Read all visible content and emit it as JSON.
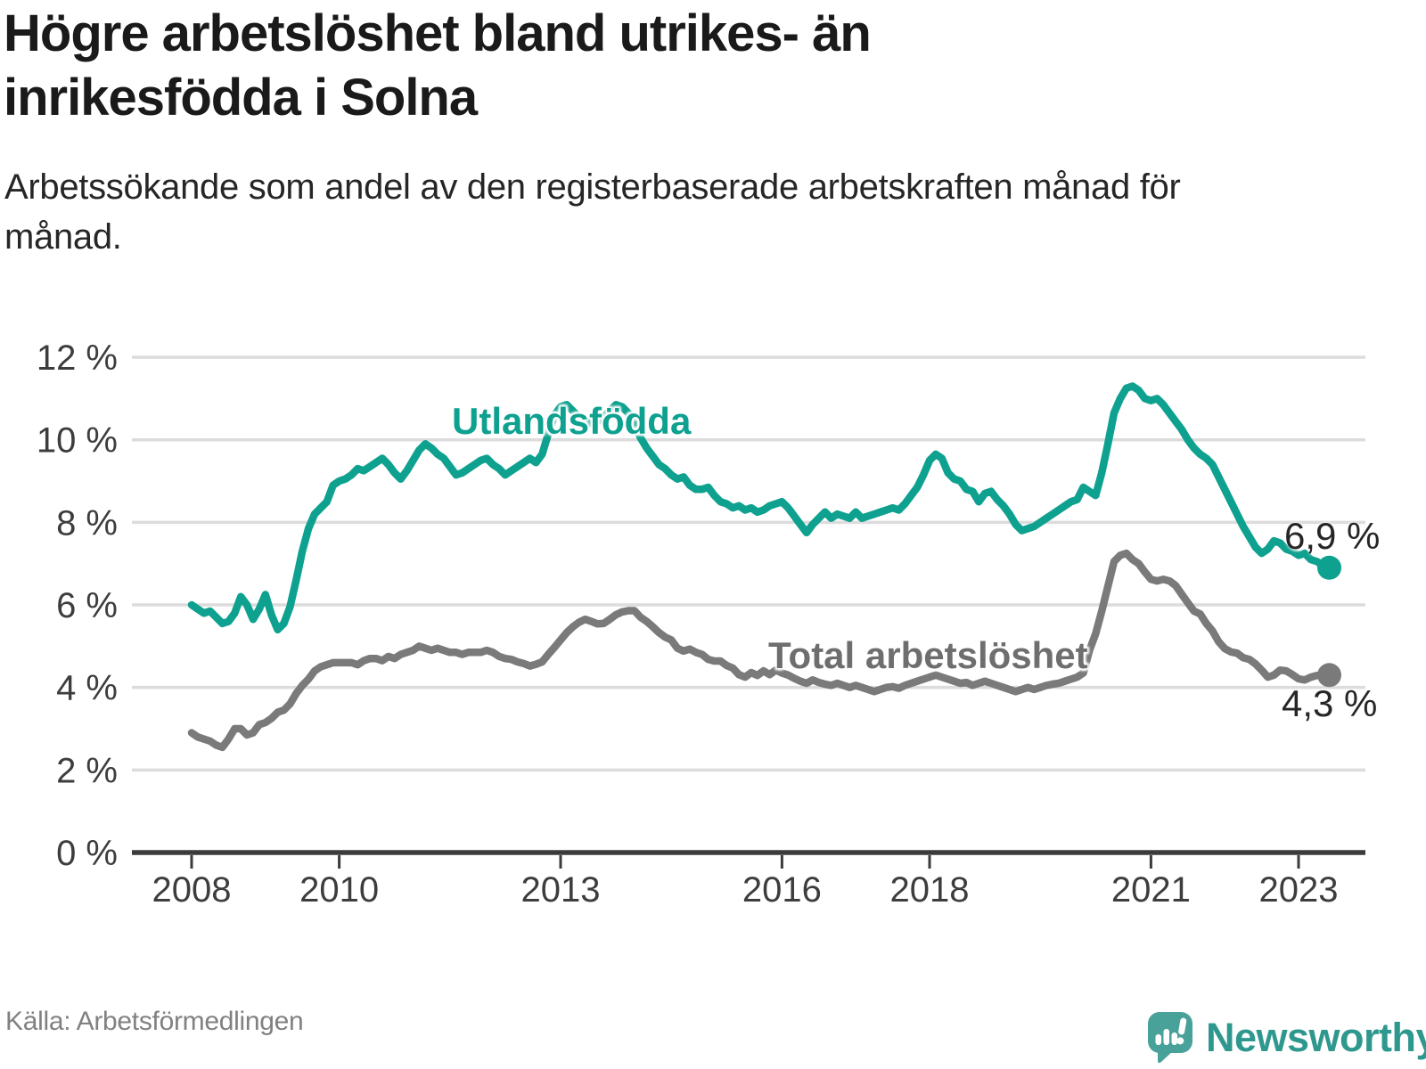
{
  "chart_data": {
    "type": "line",
    "title": "Högre arbetslöshet bland utrikes- än inrikesfödda i Solna",
    "subtitle": "Arbetssökande som andel av den registerbaserade arbetskraften månad för månad.",
    "x_unit": "month",
    "x_start": "2008-01",
    "x_end": "2023-06",
    "x_tick_years": [
      2008,
      2010,
      2013,
      2016,
      2018,
      2021,
      2023
    ],
    "x_tick_labels": [
      "2008",
      "2010",
      "2013",
      "2016",
      "2018",
      "2021",
      "2023"
    ],
    "ylim": [
      0,
      12
    ],
    "y_ticks": [
      0,
      2,
      4,
      6,
      8,
      10,
      12
    ],
    "y_tick_labels": [
      "0 %",
      "2 %",
      "4 %",
      "6 %",
      "8 %",
      "10 %",
      "12 %"
    ],
    "grid": "horizontal",
    "legend_position": "inline-labels",
    "colors": {
      "grid": "#dcdcdc",
      "axis": "#3b3b3b",
      "tick_text": "#3d3d3d"
    },
    "series": [
      {
        "name": "Utlandsfödda",
        "color": "#0ea18f",
        "end_label": "6,9 %",
        "end_value": 6.9,
        "values": [
          6.0,
          5.9,
          5.8,
          5.85,
          5.7,
          5.55,
          5.6,
          5.8,
          6.2,
          6.0,
          5.65,
          5.9,
          6.25,
          5.75,
          5.4,
          5.55,
          5.95,
          6.6,
          7.3,
          7.85,
          8.2,
          8.35,
          8.5,
          8.9,
          9.0,
          9.05,
          9.15,
          9.3,
          9.25,
          9.35,
          9.45,
          9.55,
          9.4,
          9.2,
          9.05,
          9.25,
          9.5,
          9.75,
          9.9,
          9.8,
          9.65,
          9.55,
          9.35,
          9.15,
          9.2,
          9.3,
          9.4,
          9.5,
          9.55,
          9.4,
          9.3,
          9.15,
          9.25,
          9.35,
          9.45,
          9.55,
          9.45,
          9.65,
          10.15,
          10.6,
          10.8,
          10.85,
          10.7,
          10.55,
          10.45,
          10.4,
          10.45,
          10.55,
          10.7,
          10.85,
          10.8,
          10.65,
          10.4,
          10.05,
          9.8,
          9.6,
          9.4,
          9.3,
          9.15,
          9.05,
          9.1,
          8.9,
          8.8,
          8.8,
          8.85,
          8.65,
          8.5,
          8.45,
          8.35,
          8.4,
          8.3,
          8.35,
          8.25,
          8.3,
          8.4,
          8.45,
          8.5,
          8.35,
          8.15,
          7.95,
          7.75,
          7.95,
          8.1,
          8.25,
          8.1,
          8.2,
          8.15,
          8.1,
          8.25,
          8.1,
          8.15,
          8.2,
          8.25,
          8.3,
          8.35,
          8.3,
          8.45,
          8.65,
          8.85,
          9.15,
          9.5,
          9.65,
          9.55,
          9.2,
          9.05,
          9.0,
          8.8,
          8.75,
          8.5,
          8.7,
          8.75,
          8.55,
          8.4,
          8.2,
          7.95,
          7.8,
          7.85,
          7.9,
          8.0,
          8.1,
          8.2,
          8.3,
          8.4,
          8.5,
          8.55,
          8.85,
          8.75,
          8.65,
          9.2,
          9.9,
          10.65,
          11.0,
          11.25,
          11.3,
          11.2,
          11.0,
          10.95,
          11.0,
          10.85,
          10.65,
          10.45,
          10.25,
          10.0,
          9.8,
          9.65,
          9.55,
          9.4,
          9.1,
          8.8,
          8.5,
          8.2,
          7.9,
          7.65,
          7.4,
          7.25,
          7.35,
          7.55,
          7.5,
          7.35,
          7.3,
          7.2,
          7.25,
          7.1,
          7.05,
          6.95,
          6.9
        ]
      },
      {
        "name": "Total arbetslöshet",
        "color": "#7a7a7a",
        "end_label": "4,3 %",
        "end_value": 4.3,
        "values": [
          2.9,
          2.8,
          2.75,
          2.7,
          2.6,
          2.55,
          2.75,
          3.0,
          3.0,
          2.85,
          2.9,
          3.1,
          3.15,
          3.25,
          3.4,
          3.45,
          3.6,
          3.85,
          4.05,
          4.2,
          4.4,
          4.5,
          4.55,
          4.6,
          4.6,
          4.6,
          4.6,
          4.55,
          4.65,
          4.7,
          4.7,
          4.65,
          4.75,
          4.7,
          4.8,
          4.85,
          4.9,
          5.0,
          4.95,
          4.9,
          4.95,
          4.9,
          4.85,
          4.85,
          4.8,
          4.85,
          4.85,
          4.85,
          4.9,
          4.85,
          4.75,
          4.7,
          4.68,
          4.62,
          4.58,
          4.52,
          4.56,
          4.62,
          4.8,
          4.97,
          5.15,
          5.33,
          5.47,
          5.58,
          5.65,
          5.6,
          5.54,
          5.55,
          5.65,
          5.76,
          5.83,
          5.86,
          5.86,
          5.7,
          5.6,
          5.47,
          5.33,
          5.22,
          5.15,
          4.95,
          4.88,
          4.93,
          4.85,
          4.8,
          4.68,
          4.64,
          4.64,
          4.53,
          4.47,
          4.31,
          4.25,
          4.36,
          4.29,
          4.4,
          4.31,
          4.42,
          4.35,
          4.3,
          4.22,
          4.15,
          4.1,
          4.18,
          4.12,
          4.08,
          4.05,
          4.1,
          4.05,
          4.0,
          4.05,
          4.0,
          3.95,
          3.9,
          3.95,
          4.0,
          4.02,
          3.98,
          4.05,
          4.1,
          4.15,
          4.2,
          4.25,
          4.3,
          4.25,
          4.2,
          4.15,
          4.1,
          4.12,
          4.05,
          4.1,
          4.15,
          4.1,
          4.05,
          4.0,
          3.95,
          3.9,
          3.95,
          4.0,
          3.95,
          4.0,
          4.05,
          4.08,
          4.1,
          4.15,
          4.2,
          4.25,
          4.35,
          4.9,
          5.3,
          5.85,
          6.45,
          7.05,
          7.2,
          7.25,
          7.1,
          7.0,
          6.8,
          6.62,
          6.58,
          6.62,
          6.58,
          6.47,
          6.26,
          6.05,
          5.85,
          5.78,
          5.55,
          5.37,
          5.11,
          4.94,
          4.86,
          4.83,
          4.72,
          4.68,
          4.57,
          4.42,
          4.25,
          4.3,
          4.42,
          4.4,
          4.31,
          4.21,
          4.18,
          4.25,
          4.29,
          4.3,
          4.3
        ]
      }
    ]
  },
  "footer": {
    "source": "Källa: Arbetsförmedlingen",
    "brand": "Newsworthy"
  }
}
